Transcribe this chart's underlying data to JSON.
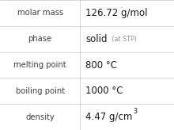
{
  "rows": [
    [
      "molar mass",
      "126.72 g/mol"
    ],
    [
      "phase",
      "solid (at STP)"
    ],
    [
      "melting point",
      "800 °C"
    ],
    [
      "boiling point",
      "1000 °C"
    ],
    [
      "density",
      "4.47 g/cm³"
    ]
  ],
  "bg_color": "#ffffff",
  "cell_bg": "#ffffff",
  "line_color": "#d0d0d0",
  "label_color": "#404040",
  "value_color": "#1a1a1a",
  "sub_color": "#909090",
  "col_split": 0.46,
  "label_fontsize": 7.2,
  "value_fontsize": 8.5,
  "sub_fontsize": 5.8,
  "phase_main": "solid",
  "phase_sub": " (at STP)",
  "density_base": "4.47 g/cm",
  "density_sup": "3"
}
